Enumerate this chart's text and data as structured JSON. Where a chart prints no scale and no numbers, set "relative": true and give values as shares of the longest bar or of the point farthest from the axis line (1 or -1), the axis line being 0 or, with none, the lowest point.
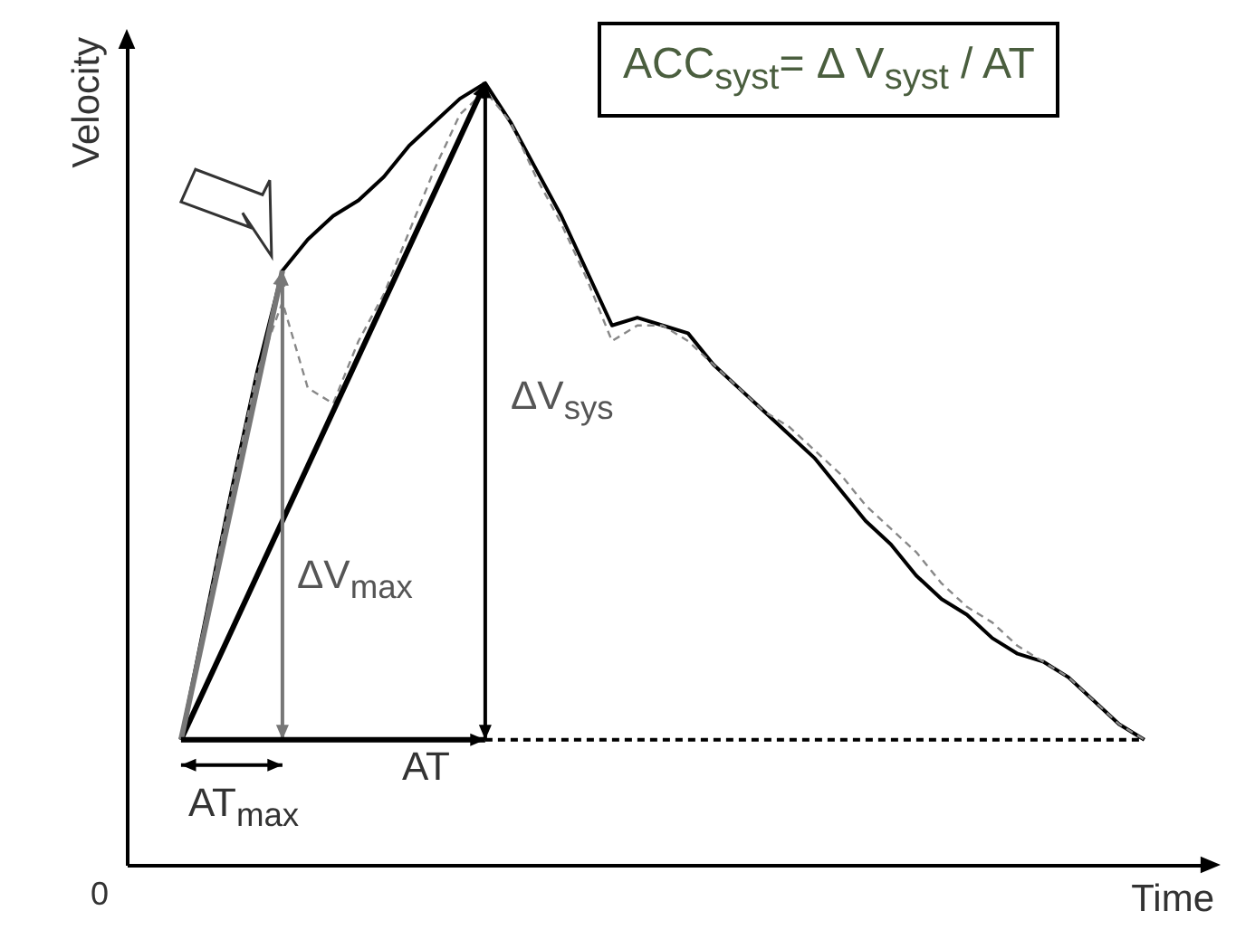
{
  "chart_data": {
    "type": "line",
    "relative": true,
    "xlabel": "Time",
    "ylabel": "Velocity",
    "categories": [
      null,
      null,
      null,
      null,
      null,
      null,
      null,
      null,
      null,
      null,
      null,
      null,
      null,
      null,
      null,
      null,
      null,
      null,
      null,
      null,
      null,
      null,
      null,
      null,
      null,
      null,
      null,
      null,
      null,
      null,
      null,
      null,
      null,
      null,
      null,
      null,
      null,
      null,
      null
    ],
    "series": [
      {
        "color": "#000000",
        "line_style": "solid",
        "values": [
          0.16,
          0.32,
          0.48,
          0.63,
          0.76,
          0.8,
          0.83,
          0.85,
          0.88,
          0.92,
          0.95,
          0.98,
          1.0,
          0.95,
          0.89,
          0.83,
          0.76,
          0.69,
          0.7,
          0.69,
          0.68,
          0.64,
          0.61,
          0.58,
          0.55,
          0.52,
          0.48,
          0.44,
          0.41,
          0.37,
          0.34,
          0.32,
          0.29,
          0.27,
          0.26,
          0.24,
          0.21,
          0.18,
          0.16
        ]
      },
      {
        "color": "#888888",
        "line_style": "dashed",
        "values": [
          0.16,
          0.32,
          0.48,
          0.63,
          0.72,
          0.61,
          0.59,
          0.67,
          0.73,
          0.81,
          0.89,
          0.96,
          0.99,
          0.95,
          0.88,
          0.82,
          0.75,
          0.67,
          0.69,
          0.69,
          0.67,
          0.64,
          0.61,
          0.58,
          0.56,
          0.53,
          0.5,
          0.46,
          0.43,
          0.4,
          0.36,
          0.33,
          0.31,
          0.28,
          0.26,
          0.24,
          0.21,
          0.18,
          0.16
        ]
      }
    ],
    "annotations": [
      "ACC$_{syst}$= Δ V$_{syst}$ / AT",
      "ΔV$_{sys}$",
      "ΔV$_{max}$",
      "AT",
      "AT$_{max}$",
      "0"
    ]
  }
}
